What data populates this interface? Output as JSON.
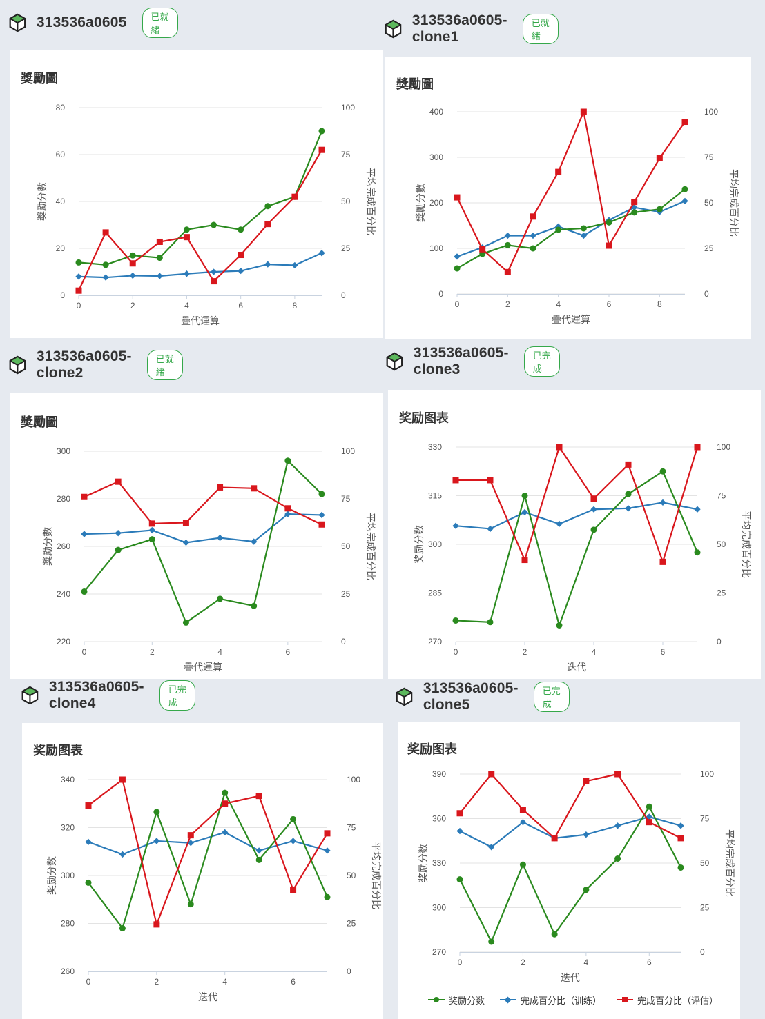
{
  "colors": {
    "reward": "#2a8a1e",
    "train": "#2b7bb9",
    "eval": "#d9171d",
    "badge": "#35a84a"
  },
  "legend": {
    "reward": "奖励分数",
    "train": "完成百分比（训练）",
    "eval": "完成百分比（评估）"
  },
  "panels": [
    {
      "id": "p0",
      "name": "313536a0605",
      "status": "已就緒",
      "card_title": "獎勵圖",
      "chart_data": {
        "type": "line",
        "xlabel": "疊代運算",
        "ylabel_left": "獎勵分數",
        "ylabel_right": "平均完成百分比",
        "ylim": [
          0,
          80
        ],
        "yticks": [
          0,
          20,
          40,
          60,
          80
        ],
        "y2lim": [
          0,
          100
        ],
        "y2ticks": [
          0,
          25,
          50,
          75,
          100
        ],
        "xlim": [
          0,
          9
        ],
        "xticks": [
          0,
          2,
          4,
          6,
          8
        ],
        "x": [
          0,
          1,
          2,
          3,
          4,
          5,
          6,
          7,
          8,
          9
        ],
        "series": [
          {
            "key": "reward",
            "axis": "left",
            "values": [
              14,
              13,
              17,
              16,
              28,
              30,
              28,
              38,
              42,
              70
            ]
          },
          {
            "key": "train",
            "axis": "right",
            "values": [
              10,
              9.5,
              10.5,
              10.3,
              11.5,
              12.5,
              13,
              16.5,
              16,
              22.5
            ]
          },
          {
            "key": "eval",
            "axis": "right",
            "values": [
              2.5,
              33.5,
              17,
              28.5,
              31,
              7.5,
              21.5,
              38,
              52.5,
              77.5
            ]
          }
        ]
      }
    },
    {
      "id": "p1",
      "name": "313536a0605-clone1",
      "status": "已就緒",
      "card_title": "獎勵圖",
      "chart_data": {
        "type": "line",
        "xlabel": "疊代運算",
        "ylabel_left": "獎勵分數",
        "ylabel_right": "平均完成百分比",
        "ylim": [
          0,
          400
        ],
        "yticks": [
          0,
          100,
          200,
          300,
          400
        ],
        "y2lim": [
          0,
          100
        ],
        "y2ticks": [
          0,
          25,
          50,
          75,
          100
        ],
        "xlim": [
          0,
          9
        ],
        "xticks": [
          0,
          2,
          4,
          6,
          8
        ],
        "x": [
          0,
          1,
          2,
          3,
          4,
          5,
          6,
          7,
          8,
          9
        ],
        "series": [
          {
            "key": "reward",
            "axis": "left",
            "values": [
              56,
              88,
              107,
              100,
              141,
              144,
              157,
              179,
              186,
              230
            ]
          },
          {
            "key": "train",
            "axis": "right",
            "values": [
              20.5,
              25.5,
              32,
              32,
              37,
              32,
              40.5,
              47.5,
              45,
              51
            ]
          },
          {
            "key": "eval",
            "axis": "right",
            "values": [
              53,
              24.5,
              12,
              42.5,
              67,
              100,
              26.5,
              50.5,
              74.5,
              94.5
            ]
          }
        ]
      }
    },
    {
      "id": "p2",
      "name": "313536a0605-clone2",
      "status": "已就緒",
      "card_title": "獎勵圖",
      "chart_data": {
        "type": "line",
        "xlabel": "疊代運算",
        "ylabel_left": "獎勵分數",
        "ylabel_right": "平均完成百分比",
        "ylim": [
          220,
          300
        ],
        "yticks": [
          220,
          240,
          260,
          280,
          300
        ],
        "y2lim": [
          0,
          100
        ],
        "y2ticks": [
          0,
          25,
          50,
          75,
          100
        ],
        "xlim": [
          0,
          7
        ],
        "xticks": [
          0,
          2,
          4,
          6
        ],
        "x": [
          0,
          1,
          2,
          3,
          4,
          5,
          6,
          7
        ],
        "series": [
          {
            "key": "reward",
            "axis": "left",
            "values": [
              241,
              258.5,
              263,
              228,
              238,
              235,
              296,
              282
            ]
          },
          {
            "key": "train",
            "axis": "right",
            "values": [
              56.5,
              57,
              58.5,
              52,
              54.5,
              52.5,
              67,
              66.5
            ]
          },
          {
            "key": "eval",
            "axis": "right",
            "values": [
              76,
              84,
              62,
              62.5,
              81,
              80.5,
              70,
              61.5
            ]
          }
        ]
      }
    },
    {
      "id": "p3",
      "name": "313536a0605-clone3",
      "status": "已完成",
      "card_title": "奖励图表",
      "chart_data": {
        "type": "line",
        "xlabel": "迭代",
        "ylabel_left": "奖励分数",
        "ylabel_right": "平均完成百分比",
        "ylim": [
          270,
          330
        ],
        "yticks": [
          270,
          285,
          300,
          315,
          330
        ],
        "y2lim": [
          0,
          100
        ],
        "y2ticks": [
          0,
          25,
          50,
          75,
          100
        ],
        "xlim": [
          0,
          7
        ],
        "xticks": [
          0,
          2,
          4,
          6
        ],
        "x": [
          0,
          1,
          2,
          3,
          4,
          5,
          6,
          7
        ],
        "series": [
          {
            "key": "reward",
            "axis": "left",
            "values": [
              276.5,
              276,
              315,
              275,
              304.5,
              315.5,
              322.5,
              297.5
            ]
          },
          {
            "key": "train",
            "axis": "right",
            "values": [
              59.5,
              58,
              66.5,
              60.5,
              68,
              68.5,
              71.5,
              68
            ]
          },
          {
            "key": "eval",
            "axis": "right",
            "values": [
              83,
              83,
              42,
              100,
              73.5,
              91,
              41,
              100
            ]
          }
        ]
      }
    },
    {
      "id": "p4",
      "name": "313536a0605-clone4",
      "status": "已完成",
      "card_title": "奖励图表",
      "chart_data": {
        "type": "line",
        "xlabel": "迭代",
        "ylabel_left": "奖励分数",
        "ylabel_right": "平均完成百分比",
        "ylim": [
          260,
          340
        ],
        "yticks": [
          260,
          280,
          300,
          320,
          340
        ],
        "y2lim": [
          0,
          100
        ],
        "y2ticks": [
          0,
          25,
          50,
          75,
          100
        ],
        "xlim": [
          0,
          7
        ],
        "xticks": [
          0,
          2,
          4,
          6
        ],
        "x": [
          0,
          1,
          2,
          3,
          4,
          5,
          6,
          7
        ],
        "series": [
          {
            "key": "reward",
            "axis": "left",
            "values": [
              297,
              278,
              326.5,
              288,
              334.5,
              306.5,
              323.5,
              291
            ]
          },
          {
            "key": "train",
            "axis": "right",
            "values": [
              67.5,
              61,
              68,
              67,
              72.5,
              63,
              68,
              63
            ]
          },
          {
            "key": "eval",
            "axis": "right",
            "values": [
              86.5,
              100,
              24.5,
              71,
              87.5,
              91.5,
              42.5,
              72
            ]
          }
        ]
      }
    },
    {
      "id": "p5",
      "name": "313536a0605-clone5",
      "status": "已完成",
      "card_title": "奖励图表",
      "chart_data": {
        "type": "line",
        "xlabel": "迭代",
        "ylabel_left": "奖励分数",
        "ylabel_right": "平均完成百分比",
        "ylim": [
          270,
          390
        ],
        "yticks": [
          270,
          300,
          330,
          360,
          390
        ],
        "y2lim": [
          0,
          100
        ],
        "y2ticks": [
          0,
          25,
          50,
          75,
          100
        ],
        "xlim": [
          0,
          7
        ],
        "xticks": [
          0,
          2,
          4,
          6
        ],
        "x": [
          0,
          1,
          2,
          3,
          4,
          5,
          6,
          7
        ],
        "series": [
          {
            "key": "reward",
            "axis": "left",
            "values": [
              319,
              277,
              329,
              282,
              312,
              333,
              368,
              327
            ]
          },
          {
            "key": "train",
            "axis": "right",
            "values": [
              68,
              59,
              73,
              64,
              66,
              71,
              76,
              71
            ]
          },
          {
            "key": "eval",
            "axis": "right",
            "values": [
              78,
              100,
              80,
              64,
              96,
              100,
              73,
              64
            ]
          }
        ]
      }
    }
  ]
}
